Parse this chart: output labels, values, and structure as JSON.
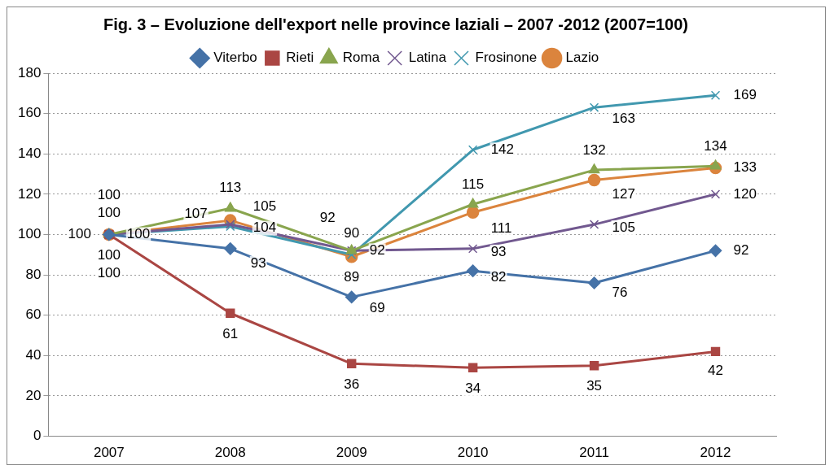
{
  "chart_data": {
    "type": "line",
    "title": "Fig. 3 – Evoluzione dell'export nelle province laziali – 2007 -2012 (2007=100)",
    "categories": [
      "2007",
      "2008",
      "2009",
      "2010",
      "2011",
      "2012"
    ],
    "series": [
      {
        "name": "Viterbo",
        "color": "#4572a7",
        "marker": "diamond",
        "values": [
          100,
          93,
          69,
          82,
          76,
          92
        ]
      },
      {
        "name": "Rieti",
        "color": "#aa4643",
        "marker": "square",
        "values": [
          100,
          61,
          36,
          34,
          35,
          42
        ]
      },
      {
        "name": "Roma",
        "color": "#89a54e",
        "marker": "triangle",
        "values": [
          100,
          113,
          92,
          115,
          132,
          134
        ]
      },
      {
        "name": "Latina",
        "color": "#71588f",
        "marker": "cross",
        "values": [
          100,
          105,
          92,
          93,
          105,
          120
        ]
      },
      {
        "name": "Frosinone",
        "color": "#4198af",
        "marker": "cross",
        "values": [
          100,
          104,
          90,
          142,
          163,
          169
        ]
      },
      {
        "name": "Lazio",
        "color": "#db843d",
        "marker": "circle",
        "values": [
          100,
          107,
          89,
          111,
          127,
          133
        ]
      }
    ],
    "ylim": [
      0,
      180
    ],
    "yticks": [
      0,
      20,
      40,
      60,
      80,
      100,
      120,
      140,
      160,
      180
    ],
    "grid": "y",
    "legend": "top",
    "data_labels": true
  }
}
